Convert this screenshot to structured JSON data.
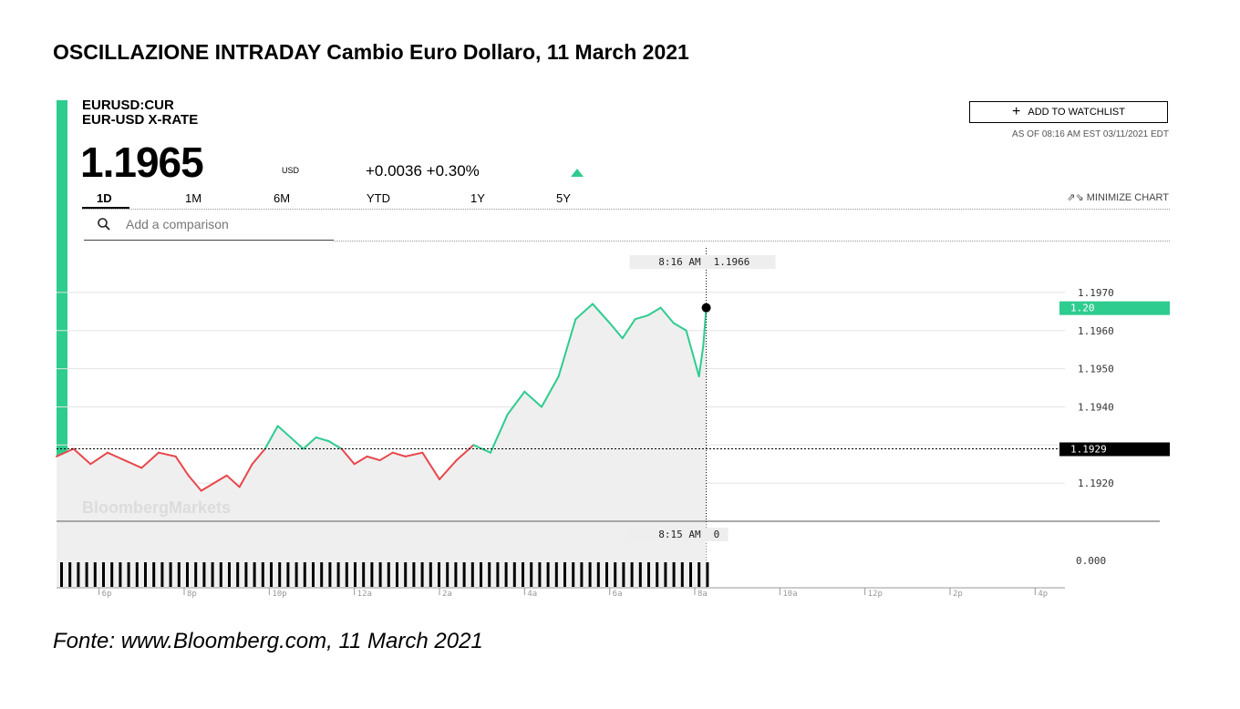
{
  "page_title": "OSCILLAZIONE INTRADAY Cambio Euro Dollaro, 11 March 2021",
  "caption": "Fonte: www.Bloomberg.com, 11 March 2021",
  "quote": {
    "ticker": "EURUSD:CUR",
    "name": "EUR-USD X-RATE",
    "price": "1.1965",
    "currency": "USD",
    "change": "+0.0036 +0.30%",
    "as_of": "AS OF 08:16 AM EST 03/11/2021 EDT"
  },
  "toolbar": {
    "watchlist_label": "ADD TO WATCHLIST",
    "minimize_label": "MINIMIZE CHART",
    "tabs": [
      "1D",
      "1M",
      "6M",
      "YTD",
      "1Y",
      "5Y"
    ],
    "search_placeholder": "Add a comparison"
  },
  "colors": {
    "up": "#2ecc8f",
    "down": "#e8474c",
    "accent": "#2ecc8f"
  },
  "icons": {
    "add": "plus-icon",
    "minimize": "minimize-icon",
    "search": "search-icon",
    "trend": "up-arrow-icon"
  },
  "chart_data": {
    "type": "line",
    "watermark": "BloombergMarkets",
    "x_tick_labels": [
      "6p",
      "8p",
      "10p",
      "12a",
      "2a",
      "4a",
      "6a",
      "8a",
      "10a",
      "12p",
      "2p",
      "4p"
    ],
    "x_unit": "hours since 6p",
    "x_range": [
      -1.0,
      22.7
    ],
    "y_range": [
      1.191,
      1.1975
    ],
    "y_tick_values": [
      1.192,
      1.193,
      1.194,
      1.195,
      1.196,
      1.197
    ],
    "y_tick_labels": [
      "1.1920",
      "1.1930",
      "1.1940",
      "1.1950",
      "1.1960",
      "1.1970"
    ],
    "previous_close": 1.1929,
    "previous_close_label": "1.1929",
    "current_label": "1.20",
    "crosshair": {
      "time_label": "8:16 AM",
      "value_label": "1.1966",
      "x": 14.27,
      "y": 1.1966
    },
    "volume": {
      "time_label": "8:15 AM",
      "value_label": "0",
      "axis_label": "0.000"
    },
    "series": {
      "x": [
        -1.0,
        -0.6,
        -0.2,
        0.2,
        0.6,
        1.0,
        1.4,
        1.8,
        2.1,
        2.4,
        2.7,
        3.0,
        3.3,
        3.6,
        3.9,
        4.2,
        4.5,
        4.8,
        5.1,
        5.4,
        5.7,
        6.0,
        6.3,
        6.6,
        6.9,
        7.2,
        7.6,
        8.0,
        8.4,
        8.8,
        9.2,
        9.6,
        10.0,
        10.4,
        10.8,
        11.2,
        11.6,
        12.0,
        12.3,
        12.6,
        12.9,
        13.2,
        13.5,
        13.8,
        14.1,
        14.2,
        14.27
      ],
      "y": [
        1.1927,
        1.1929,
        1.1925,
        1.1928,
        1.1926,
        1.1924,
        1.1928,
        1.1927,
        1.1922,
        1.1918,
        1.192,
        1.1922,
        1.1919,
        1.1925,
        1.1929,
        1.1935,
        1.1932,
        1.1929,
        1.1932,
        1.1931,
        1.1929,
        1.1925,
        1.1927,
        1.1926,
        1.1928,
        1.1927,
        1.1928,
        1.1921,
        1.1926,
        1.193,
        1.1928,
        1.1938,
        1.1944,
        1.194,
        1.1948,
        1.1963,
        1.1967,
        1.1962,
        1.1958,
        1.1963,
        1.1964,
        1.1966,
        1.1962,
        1.196,
        1.1948,
        1.1956,
        1.1966
      ]
    }
  }
}
